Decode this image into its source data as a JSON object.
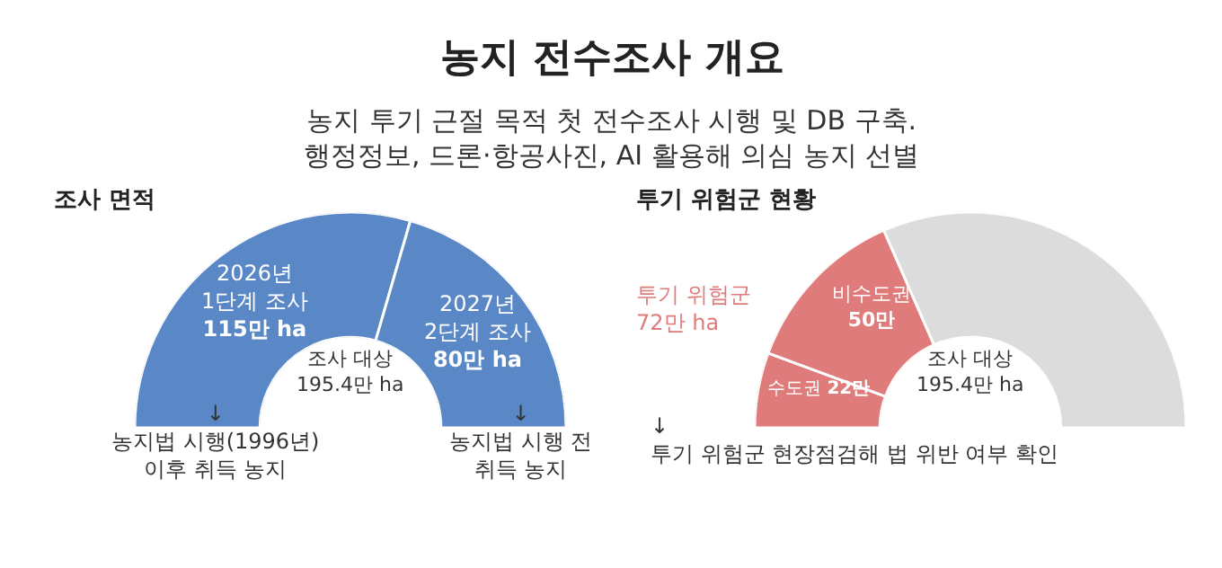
{
  "chart_data": [
    {
      "type": "other",
      "title": "농지 전수조사 개요",
      "subtitle": "농지 투기 근절 목적 첫 전수조사 시행 및 DB 구축.\n행정정보, 드론·항공사진, AI 활용해 의심 농지 선별"
    },
    {
      "type": "donut",
      "title": "조사 면적",
      "categories": [
        "2026년\n1단계 조사",
        "2027년\n2단계 조사"
      ],
      "values": [
        115,
        80
      ],
      "value_labels": [
        "115만 ha",
        "80만 ha"
      ],
      "colors": [
        "#5a88c6",
        "#5a88c6"
      ],
      "annotations": [
        "조사 대상\n195.4만 ha",
        "↓\n농지법 시행(1996년)\n이후 취득 농지",
        "↓\n농지법 시행 전\n취득 농지"
      ]
    },
    {
      "type": "donut",
      "title": "투기 위험군 현황",
      "categories": [
        "수도권",
        "비수도권",
        null
      ],
      "values": [
        22,
        50,
        123.4
      ],
      "value_labels": [
        "22만",
        "50만",
        null
      ],
      "colors": [
        "#e07b7b",
        "#e07b7b",
        "#dcdcdc"
      ],
      "annotations": [
        "조사 대상\n195.4만 ha",
        "투기 위험군\n72만 ha",
        "↓\n투기 위험군 현장점검해 법 위반 여부 확인"
      ]
    }
  ]
}
